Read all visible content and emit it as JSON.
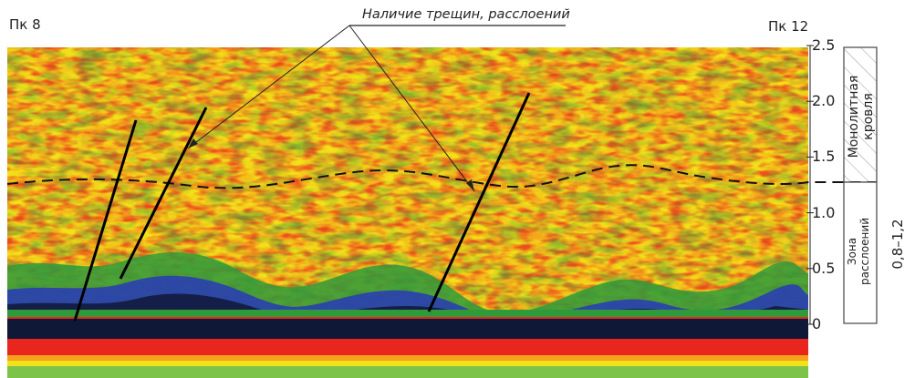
{
  "labels": {
    "pk_left": "Пк 8",
    "pk_right": "Пк 12",
    "callout": "Наличие трещин, расслоений"
  },
  "depth_axis": {
    "ticks": [
      "2.5",
      "2.0",
      "1.5",
      "1.0",
      "0.5",
      "0"
    ],
    "values": [
      2.5,
      2.0,
      1.5,
      1.0,
      0.5,
      0
    ]
  },
  "legend": {
    "upper_line1": "Монолитная",
    "upper_line2": "кровля",
    "lower_line1": "Зона",
    "lower_line2": "расслоений",
    "range": "0,8–1,2"
  },
  "colors": {
    "yellow": "#f2e11a",
    "orange": "#f4a21c",
    "red": "#e8261e",
    "green": "#2f9a3a",
    "blue": "#2a3fb0",
    "dark": "#101838"
  }
}
